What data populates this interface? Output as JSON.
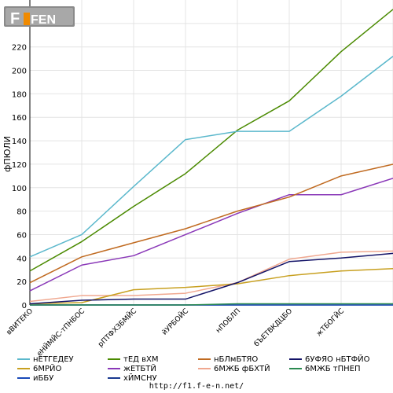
{
  "logo": {
    "text": "F1FEN",
    "colors": {
      "box": "#777777",
      "accent": "#f08a00",
      "text": "#ffffff"
    }
  },
  "footer": {
    "url": "http://f1.f-e-n.net/"
  },
  "chart_data": {
    "type": "line",
    "ylabel": "фПЮЛИ",
    "ylim": [
      0,
      260
    ],
    "yticks": [
      0,
      20,
      40,
      60,
      80,
      100,
      120,
      140,
      160,
      180,
      200,
      220,
      240
    ],
    "grid": true,
    "legend_placement": "bottom",
    "categories": [
      "вВИТЕКО",
      "еНЙМЙС-тПНБОС",
      "рПТФХЗБМЙС",
      "йУРБОЙС",
      "нПОБЛП",
      "бЪЕТВКДЦБО",
      "жТБОГЙС",
      ""
    ],
    "series": [
      {
        "name": "нЕТГЕДЕУ",
        "color": "#5bb8cc",
        "values": [
          41,
          60,
          101,
          141,
          148,
          148,
          178,
          212
        ]
      },
      {
        "name": "тЕД вХМ",
        "color": "#4a8a00",
        "values": [
          29,
          54,
          84,
          112,
          149,
          174,
          216,
          252
        ]
      },
      {
        "name": "нБЛмБТЯО",
        "color": "#c06a20",
        "values": [
          19,
          41,
          53,
          65,
          80,
          92,
          110,
          120
        ]
      },
      {
        "name": "6УФЯО нБТФЙО",
        "color": "#141468",
        "values": [
          1,
          4,
          5,
          5,
          19,
          37,
          40,
          44
        ]
      },
      {
        "name": "6МРЙО",
        "color": "#c8a020",
        "values": [
          1,
          2,
          13,
          15,
          18,
          25,
          29,
          31
        ]
      },
      {
        "name": "жЕТБТЙ",
        "color": "#8a38b8",
        "values": [
          12,
          34,
          42,
          60,
          78,
          94,
          94,
          108
        ]
      },
      {
        "name": "6МЖБ фБХТЙ",
        "color": "#f0a890",
        "values": [
          3,
          8,
          8,
          10,
          19,
          39,
          45,
          46
        ]
      },
      {
        "name": "6МЖБ тПНЕП",
        "color": "#2a8a50",
        "values": [
          0,
          0,
          0,
          0,
          1,
          1,
          1,
          1
        ]
      },
      {
        "name": "иББУ",
        "color": "#1a4ab8",
        "values": [
          0,
          0,
          0,
          0,
          0,
          0,
          0,
          0
        ]
      },
      {
        "name": "хЙМСНУ",
        "color": "#1a3a90",
        "values": [
          0,
          0,
          0,
          0,
          0,
          0,
          0,
          0
        ]
      }
    ]
  }
}
